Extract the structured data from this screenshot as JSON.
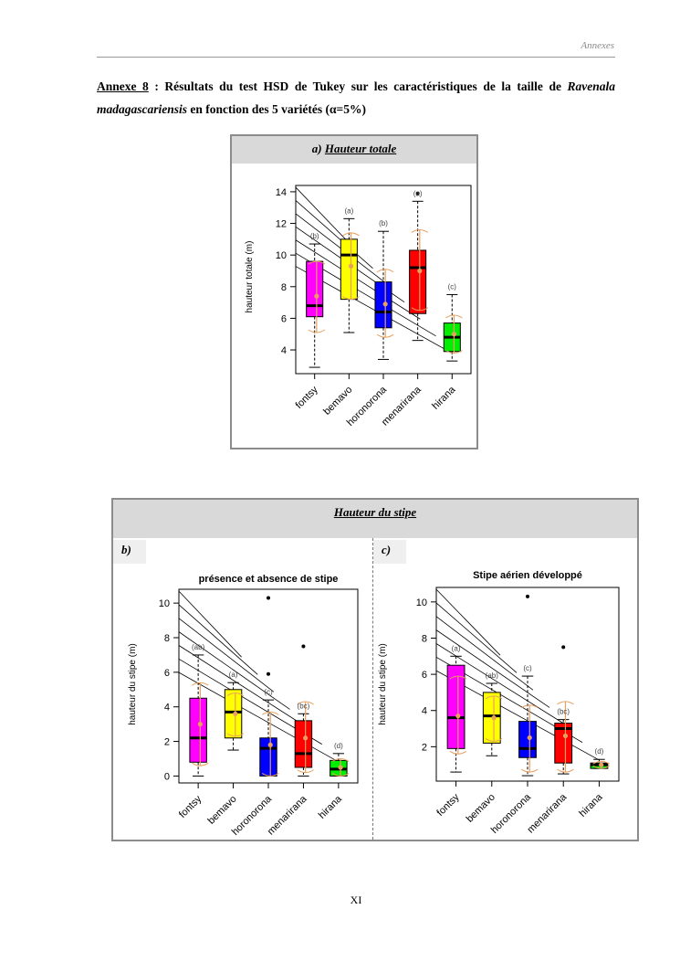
{
  "header": {
    "section": "Annexes"
  },
  "caption": {
    "label": "Annexe 8",
    "sep": " : ",
    "text1": "Résultats du test HSD de Tukey sur les caractéristiques de la taille de ",
    "species_genus": "Ravenala",
    "species_epithet": "madagascariensis",
    "text2": " en fonction des 5 variétés (α=5%)"
  },
  "panel_a": {
    "prefix": "a) ",
    "title": "Hauteur totale"
  },
  "panel_b": {
    "title": "Hauteur du stipe",
    "sub_b": "b)",
    "sub_c": "c)"
  },
  "page_number": "XI",
  "colors": {
    "fontsy": "#ff00ff",
    "bemavo": "#ffff00",
    "horonorona": "#0000ff",
    "menarirana": "#ff0000",
    "hirana": "#00ee00",
    "ci": "#e8a060"
  },
  "chart_data": [
    {
      "id": "a",
      "type": "box",
      "title": "",
      "xlabel": "",
      "ylabel": "hauteur totale (m)",
      "ylim": [
        2.5,
        14.4
      ],
      "yticks": [
        4,
        6,
        8,
        10,
        12,
        14
      ],
      "categories": [
        "fontsy",
        "bemavo",
        "horonorona",
        "menarirana",
        "hirana"
      ],
      "series": [
        {
          "name": "fontsy",
          "whisker_low": 2.9,
          "q1": 6.1,
          "median": 6.8,
          "q3": 9.6,
          "whisker_high": 10.7,
          "mean": 7.4,
          "ci": [
            5.1,
            9.6
          ],
          "outliers": [],
          "group": "(b)"
        },
        {
          "name": "bemavo",
          "whisker_low": 5.1,
          "q1": 7.2,
          "median": 10.0,
          "q3": 11.0,
          "whisker_high": 12.3,
          "mean": 9.3,
          "ci": [
            7.2,
            11.4
          ],
          "outliers": [],
          "group": "(a)"
        },
        {
          "name": "horonorona",
          "whisker_low": 3.4,
          "q1": 5.4,
          "median": 6.4,
          "q3": 8.3,
          "whisker_high": 11.5,
          "mean": 6.9,
          "ci": [
            4.8,
            9.1
          ],
          "outliers": [],
          "group": "(b)"
        },
        {
          "name": "menarirana",
          "whisker_low": 4.6,
          "q1": 6.3,
          "median": 9.2,
          "q3": 10.3,
          "whisker_high": 13.4,
          "mean": 9.0,
          "ci": [
            6.5,
            11.6
          ],
          "outliers": [
            13.9
          ],
          "group": "(a)"
        },
        {
          "name": "hirana",
          "whisker_low": 3.3,
          "q1": 3.9,
          "median": 4.8,
          "q3": 5.7,
          "whisker_high": 7.5,
          "mean": 5.0,
          "ci": [
            3.8,
            6.2
          ],
          "outliers": [],
          "group": "(c)"
        }
      ]
    },
    {
      "id": "b",
      "type": "box",
      "title": "présence et absence de stipe",
      "xlabel": "",
      "ylabel": "hauteur du stipe (m)",
      "ylim": [
        -0.4,
        10.8
      ],
      "yticks": [
        0,
        2,
        4,
        6,
        8,
        10
      ],
      "categories": [
        "fontsy",
        "bemavo",
        "horonorona",
        "menarirana",
        "hirana"
      ],
      "series": [
        {
          "name": "fontsy",
          "whisker_low": 0.0,
          "q1": 0.8,
          "median": 2.2,
          "q3": 4.5,
          "whisker_high": 7.0,
          "mean": 3.0,
          "ci": [
            0.6,
            5.4
          ],
          "outliers": [],
          "group": "(ab)"
        },
        {
          "name": "bemavo",
          "whisker_low": 1.5,
          "q1": 2.2,
          "median": 3.7,
          "q3": 5.0,
          "whisker_high": 5.4,
          "mean": 3.6,
          "ci": [
            2.3,
            4.8
          ],
          "outliers": [],
          "group": "(a)"
        },
        {
          "name": "horonorona",
          "whisker_low": 0.0,
          "q1": 0.0,
          "median": 1.6,
          "q3": 2.2,
          "whisker_high": 4.4,
          "mean": 1.8,
          "ci": [
            0.0,
            3.7
          ],
          "outliers": [
            5.9,
            10.3
          ],
          "group": "(c)"
        },
        {
          "name": "menarirana",
          "whisker_low": 0.0,
          "q1": 0.5,
          "median": 1.3,
          "q3": 3.2,
          "whisker_high": 3.6,
          "mean": 2.2,
          "ci": [
            0.2,
            4.3
          ],
          "outliers": [
            7.5
          ],
          "group": "(bc)"
        },
        {
          "name": "hirana",
          "whisker_low": 0.0,
          "q1": 0.0,
          "median": 0.4,
          "q3": 0.9,
          "whisker_high": 1.3,
          "mean": 0.5,
          "ci": [
            0.0,
            1.0
          ],
          "outliers": [],
          "group": "(d)"
        }
      ]
    },
    {
      "id": "c",
      "type": "box",
      "title": "Stipe aérien développé",
      "xlabel": "",
      "ylabel": "hauteur du stipe (m)",
      "ylim": [
        0.1,
        10.8
      ],
      "yticks": [
        2,
        4,
        6,
        8,
        10
      ],
      "categories": [
        "fontsy",
        "bemavo",
        "horonorona",
        "menarirana",
        "hirana"
      ],
      "series": [
        {
          "name": "fontsy",
          "whisker_low": 0.6,
          "q1": 1.9,
          "median": 3.6,
          "q3": 6.5,
          "whisker_high": 7.0,
          "mean": 3.7,
          "ci": [
            1.6,
            5.9
          ],
          "outliers": [],
          "group": "(a)"
        },
        {
          "name": "bemavo",
          "whisker_low": 1.5,
          "q1": 2.2,
          "median": 3.7,
          "q3": 5.0,
          "whisker_high": 5.5,
          "mean": 3.6,
          "ci": [
            2.3,
            4.8
          ],
          "outliers": [],
          "group": "(ab)"
        },
        {
          "name": "horonorona",
          "whisker_low": 0.4,
          "q1": 1.4,
          "median": 1.9,
          "q3": 3.4,
          "whisker_high": 5.9,
          "mean": 2.5,
          "ci": [
            0.6,
            4.3
          ],
          "outliers": [
            10.3
          ],
          "group": "(c)"
        },
        {
          "name": "menarirana",
          "whisker_low": 0.5,
          "q1": 1.1,
          "median": 3.0,
          "q3": 3.3,
          "whisker_high": 3.5,
          "mean": 2.6,
          "ci": [
            0.6,
            4.5
          ],
          "outliers": [
            7.5
          ],
          "group": "(bc)"
        },
        {
          "name": "hirana",
          "whisker_low": 0.8,
          "q1": 0.8,
          "median": 1.0,
          "q3": 1.1,
          "whisker_high": 1.3,
          "mean": 1.0,
          "ci": [
            0.8,
            1.2
          ],
          "outliers": [],
          "group": "(d)"
        }
      ]
    }
  ]
}
